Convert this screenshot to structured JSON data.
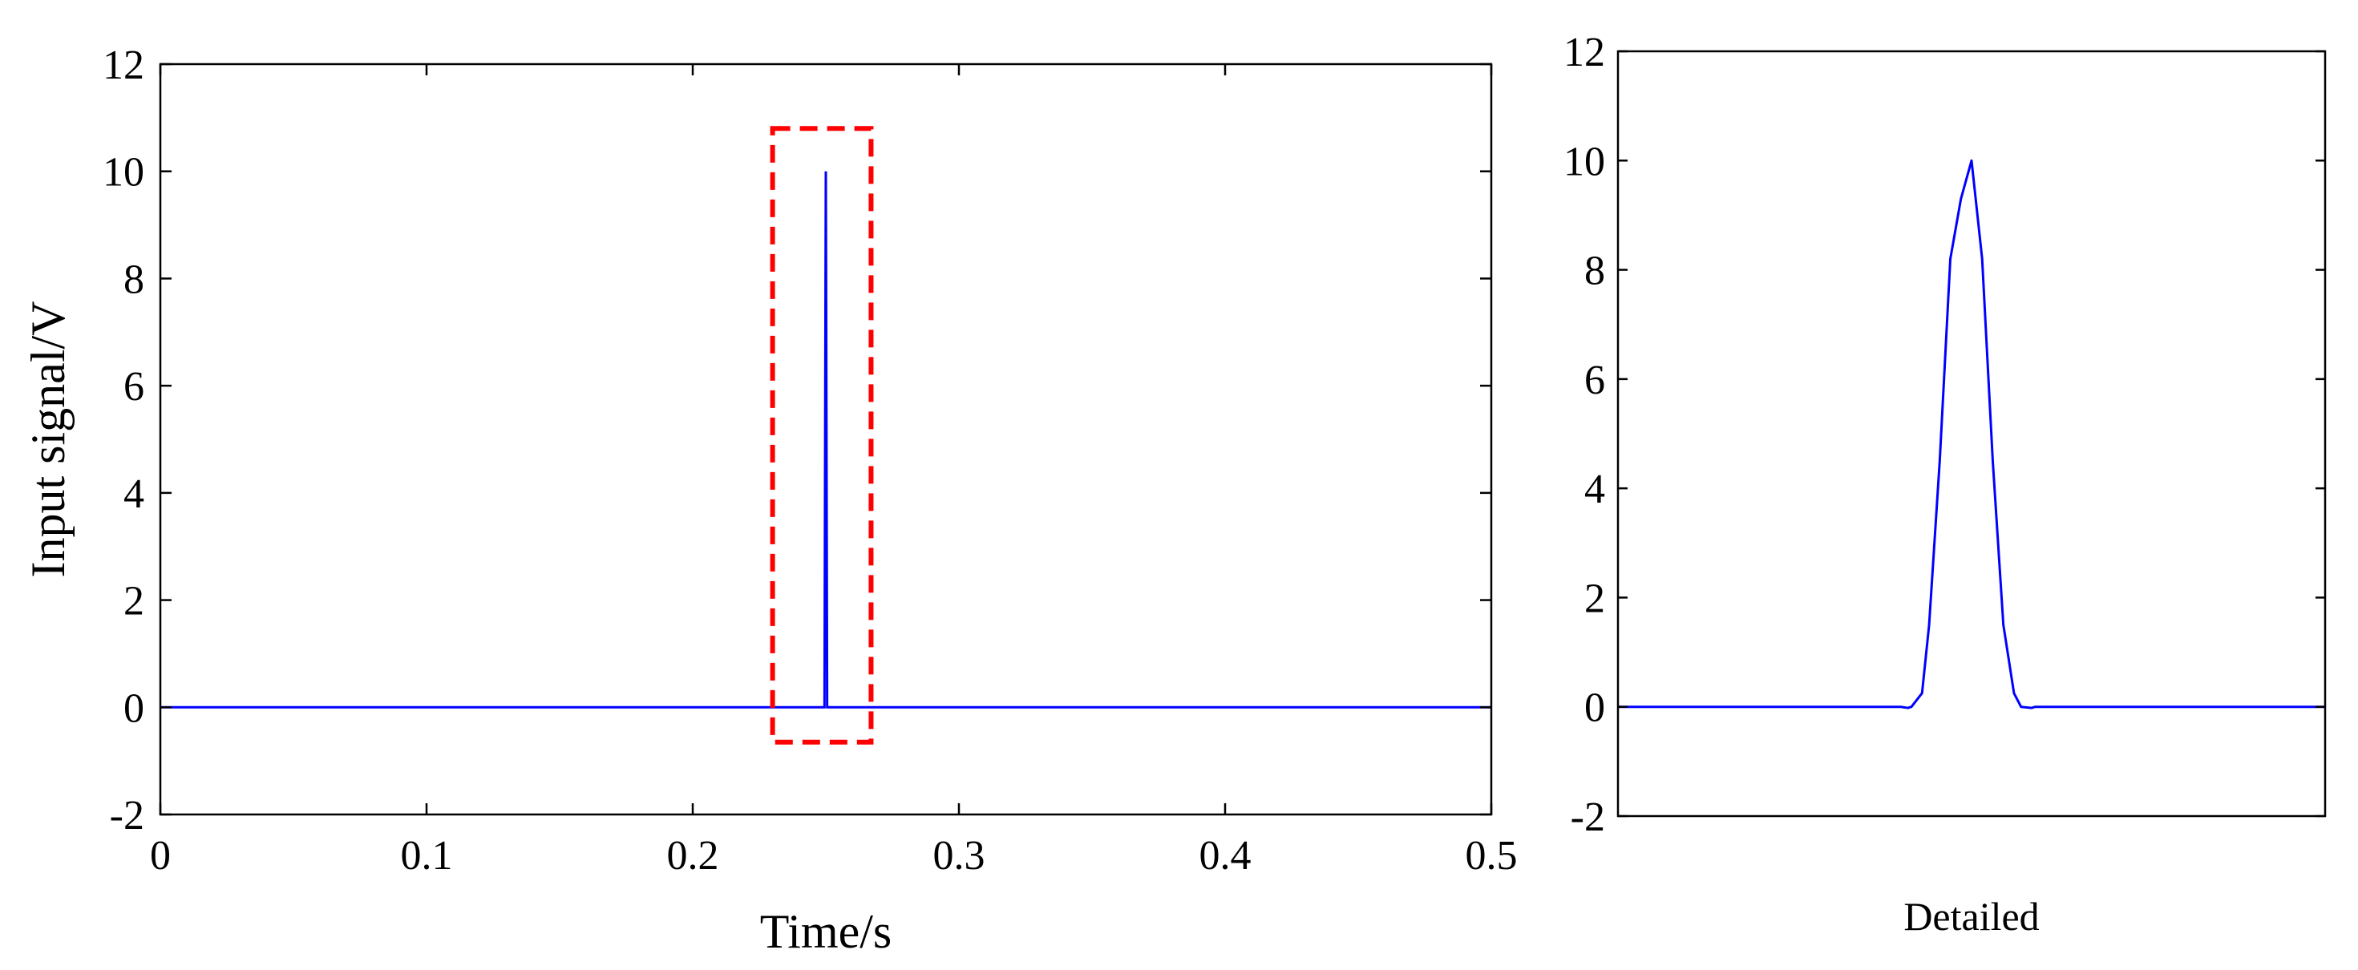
{
  "colors": {
    "signal": "#0000ff",
    "highlight_box": "#ff0000",
    "axes": "#000000",
    "background": "#ffffff"
  },
  "chart_data": [
    {
      "type": "line",
      "xlabel": "Time/s",
      "ylabel": "Input signal/V",
      "xlim": [
        0,
        0.5
      ],
      "ylim": [
        -2,
        12
      ],
      "xticks": [
        "0",
        "0.1",
        "0.2",
        "0.3",
        "0.4",
        "0.5"
      ],
      "yticks": [
        "-2",
        "0",
        "2",
        "4",
        "6",
        "8",
        "10",
        "12"
      ],
      "grid": false,
      "series": [
        {
          "x": [
            0,
            0.2495,
            0.2499,
            0.25,
            0.2501,
            0.2505,
            0.5
          ],
          "y": [
            0,
            0,
            8.2,
            10,
            8.2,
            0,
            0
          ]
        }
      ],
      "annotations": [
        {
          "type": "dashed-rectangle",
          "x": [
            0.23,
            0.267
          ],
          "y": [
            -0.65,
            10.8
          ]
        }
      ]
    },
    {
      "type": "line",
      "xlabel": "Detailed",
      "ylabel": "",
      "ylim": [
        -2,
        12
      ],
      "yticks": [
        "-2",
        "0",
        "2",
        "4",
        "6",
        "8",
        "10",
        "12"
      ],
      "xticks": [],
      "grid": false,
      "series": [
        {
          "x": [
            0,
            0.4,
            0.41,
            0.415,
            0.43,
            0.44,
            0.455,
            0.47,
            0.485,
            0.5,
            0.515,
            0.53,
            0.545,
            0.56,
            0.57,
            0.585,
            0.59,
            1
          ],
          "y": [
            0,
            0,
            -0.02,
            0,
            0.25,
            1.5,
            4.5,
            8.2,
            9.3,
            10,
            8.2,
            4.5,
            1.5,
            0.25,
            0,
            -0.02,
            0,
            0
          ]
        }
      ]
    }
  ]
}
